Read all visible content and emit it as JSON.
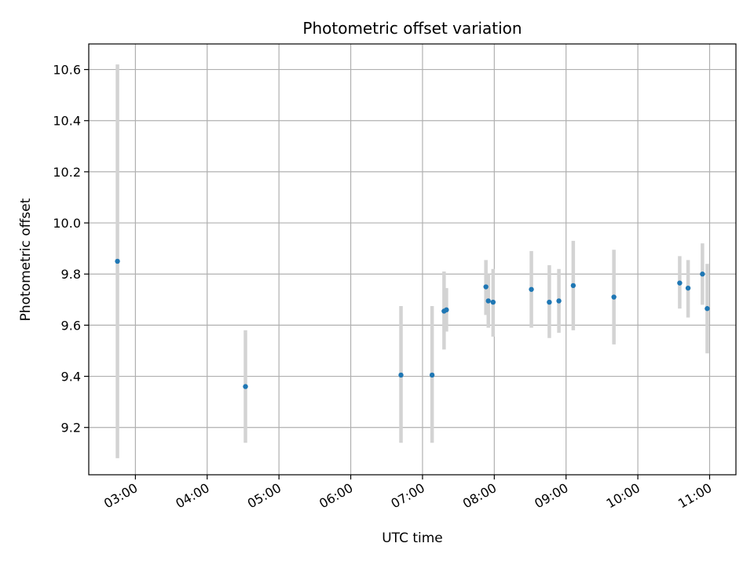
{
  "chart_data": {
    "type": "scatter",
    "title": "Photometric offset variation",
    "xlabel": "UTC time",
    "ylabel": "Photometric offset",
    "x_scale": "time",
    "xlim": [
      "02:21",
      "11:22"
    ],
    "ylim": [
      9.015,
      10.7
    ],
    "grid": true,
    "x_ticks": [
      "03:00",
      "04:00",
      "05:00",
      "06:00",
      "07:00",
      "08:00",
      "09:00",
      "10:00",
      "11:00"
    ],
    "y_ticks": [
      9.2,
      9.4,
      9.6,
      9.8,
      10.0,
      10.2,
      10.4,
      10.6
    ],
    "y_tick_labels": [
      "9.2",
      "9.4",
      "9.6",
      "9.8",
      "10.0",
      "10.2",
      "10.4",
      "10.6"
    ],
    "colors": {
      "point": "#1f77b4",
      "errorbar": "#d3d3d3",
      "grid": "#b0b0b0"
    },
    "points": [
      {
        "x": "02:45",
        "y": 9.85,
        "ylo": 9.08,
        "yhi": 10.62
      },
      {
        "x": "04:32",
        "y": 9.36,
        "ylo": 9.14,
        "yhi": 9.58
      },
      {
        "x": "06:42",
        "y": 9.405,
        "ylo": 9.14,
        "yhi": 9.675
      },
      {
        "x": "07:08",
        "y": 9.405,
        "ylo": 9.14,
        "yhi": 9.675
      },
      {
        "x": "07:18",
        "y": 9.655,
        "ylo": 9.505,
        "yhi": 9.81
      },
      {
        "x": "07:20",
        "y": 9.66,
        "ylo": 9.575,
        "yhi": 9.745
      },
      {
        "x": "07:53",
        "y": 9.75,
        "ylo": 9.64,
        "yhi": 9.855
      },
      {
        "x": "07:55",
        "y": 9.695,
        "ylo": 9.59,
        "yhi": 9.8
      },
      {
        "x": "07:59",
        "y": 9.69,
        "ylo": 9.555,
        "yhi": 9.82
      },
      {
        "x": "08:31",
        "y": 9.74,
        "ylo": 9.59,
        "yhi": 9.89
      },
      {
        "x": "08:46",
        "y": 9.69,
        "ylo": 9.55,
        "yhi": 9.835
      },
      {
        "x": "08:54",
        "y": 9.695,
        "ylo": 9.57,
        "yhi": 9.82
      },
      {
        "x": "09:06",
        "y": 9.755,
        "ylo": 9.58,
        "yhi": 9.93
      },
      {
        "x": "09:40",
        "y": 9.71,
        "ylo": 9.525,
        "yhi": 9.895
      },
      {
        "x": "10:35",
        "y": 9.765,
        "ylo": 9.665,
        "yhi": 9.87
      },
      {
        "x": "10:42",
        "y": 9.745,
        "ylo": 9.63,
        "yhi": 9.855
      },
      {
        "x": "10:54",
        "y": 9.8,
        "ylo": 9.68,
        "yhi": 9.92
      },
      {
        "x": "10:58",
        "y": 9.665,
        "ylo": 9.49,
        "yhi": 9.84
      }
    ]
  }
}
